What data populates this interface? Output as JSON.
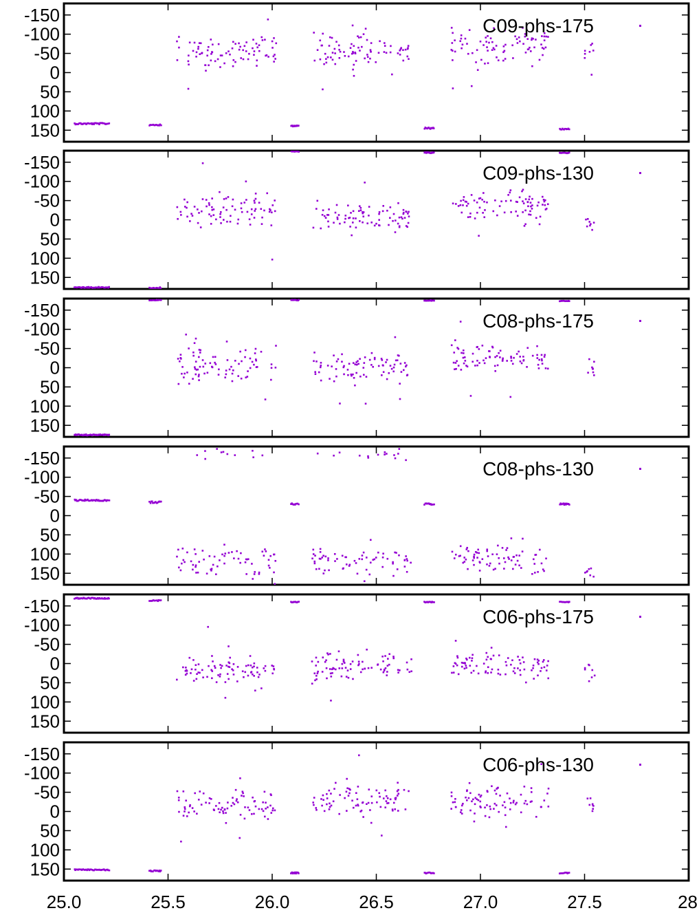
{
  "figure": {
    "x_tick_labels": [
      "25.0",
      "25.5",
      "26.0",
      "26.5",
      "27.0",
      "27.5",
      "28"
    ],
    "point_color": "#9400d3"
  },
  "chart_data": [
    {
      "type": "scatter",
      "legend": "C09-phs-175",
      "legend_position": "top-right",
      "xlim": [
        25.0,
        28.0
      ],
      "ylim": [
        180,
        -180
      ],
      "y_axis_inverted": true,
      "y_ticks": [
        -150,
        -100,
        -50,
        0,
        50,
        100,
        150
      ],
      "y_tick_labels": [
        "-150",
        "-100",
        "-50",
        "0",
        "50",
        "100",
        "150"
      ],
      "grid": false,
      "clusters": [
        {
          "x": [
            25.05,
            25.22
          ],
          "y_center": 133,
          "y_spread": 4,
          "n": 40,
          "kind": "band"
        },
        {
          "x": [
            25.41,
            25.47
          ],
          "y_center": 136,
          "y_spread": 4,
          "n": 14,
          "kind": "band"
        },
        {
          "x": [
            25.54,
            26.02
          ],
          "y_center": -55,
          "y_spread": 55,
          "n": 85,
          "kind": "scatter"
        },
        {
          "x": [
            26.09,
            26.13
          ],
          "y_center": 139,
          "y_spread": 3,
          "n": 10,
          "kind": "band"
        },
        {
          "x": [
            26.19,
            26.67
          ],
          "y_center": -55,
          "y_spread": 55,
          "n": 85,
          "kind": "scatter"
        },
        {
          "x": [
            26.73,
            26.78
          ],
          "y_center": 145,
          "y_spread": 4,
          "n": 12,
          "kind": "band"
        },
        {
          "x": [
            26.86,
            27.33
          ],
          "y_center": -70,
          "y_spread": 60,
          "n": 85,
          "kind": "scatter"
        },
        {
          "x": [
            27.38,
            27.43
          ],
          "y_center": 147,
          "y_spread": 3,
          "n": 12,
          "kind": "band"
        },
        {
          "x": [
            27.5,
            27.55
          ],
          "y_center": -55,
          "y_spread": 30,
          "n": 8,
          "kind": "scatter"
        }
      ]
    },
    {
      "type": "scatter",
      "legend": "C09-phs-130",
      "legend_position": "top-right",
      "xlim": [
        25.0,
        28.0
      ],
      "ylim": [
        180,
        -180
      ],
      "y_axis_inverted": true,
      "y_ticks": [
        -150,
        -100,
        -50,
        0,
        50,
        100,
        150
      ],
      "y_tick_labels": [
        "-150",
        "-100",
        "-50",
        "0",
        "50",
        "100",
        "150"
      ],
      "grid": false,
      "clusters": [
        {
          "x": [
            25.05,
            25.22
          ],
          "y_center": 176,
          "y_spread": 3,
          "n": 40,
          "kind": "band"
        },
        {
          "x": [
            25.41,
            25.47
          ],
          "y_center": 177,
          "y_spread": 3,
          "n": 12,
          "kind": "band"
        },
        {
          "x": [
            25.54,
            26.02
          ],
          "y_center": -25,
          "y_spread": 65,
          "n": 85,
          "kind": "scatter"
        },
        {
          "x": [
            26.09,
            26.13
          ],
          "y_center": -178,
          "y_spread": 2,
          "n": 10,
          "kind": "band"
        },
        {
          "x": [
            26.19,
            26.67
          ],
          "y_center": -10,
          "y_spread": 55,
          "n": 85,
          "kind": "scatter"
        },
        {
          "x": [
            26.73,
            26.78
          ],
          "y_center": -175,
          "y_spread": 3,
          "n": 12,
          "kind": "band"
        },
        {
          "x": [
            26.86,
            27.33
          ],
          "y_center": -40,
          "y_spread": 45,
          "n": 85,
          "kind": "scatter"
        },
        {
          "x": [
            27.38,
            27.43
          ],
          "y_center": -174,
          "y_spread": 2,
          "n": 12,
          "kind": "band"
        },
        {
          "x": [
            27.5,
            27.55
          ],
          "y_center": 5,
          "y_spread": 25,
          "n": 8,
          "kind": "scatter"
        }
      ]
    },
    {
      "type": "scatter",
      "legend": "C08-phs-175",
      "legend_position": "top-right",
      "xlim": [
        25.0,
        28.0
      ],
      "ylim": [
        180,
        -180
      ],
      "y_axis_inverted": true,
      "y_ticks": [
        -150,
        -100,
        -50,
        0,
        50,
        100,
        150
      ],
      "y_tick_labels": [
        "-150",
        "-100",
        "-50",
        "0",
        "50",
        "100",
        "150"
      ],
      "grid": false,
      "clusters": [
        {
          "x": [
            25.05,
            25.22
          ],
          "y_center": 175,
          "y_spread": 3,
          "n": 40,
          "kind": "band"
        },
        {
          "x": [
            25.41,
            25.47
          ],
          "y_center": -176,
          "y_spread": 3,
          "n": 12,
          "kind": "band"
        },
        {
          "x": [
            25.54,
            26.02
          ],
          "y_center": -5,
          "y_spread": 60,
          "n": 85,
          "kind": "scatter"
        },
        {
          "x": [
            26.09,
            26.13
          ],
          "y_center": -176,
          "y_spread": 2,
          "n": 10,
          "kind": "band"
        },
        {
          "x": [
            26.19,
            26.67
          ],
          "y_center": 0,
          "y_spread": 55,
          "n": 85,
          "kind": "scatter"
        },
        {
          "x": [
            26.73,
            26.78
          ],
          "y_center": -175,
          "y_spread": 2,
          "n": 12,
          "kind": "band"
        },
        {
          "x": [
            26.86,
            27.33
          ],
          "y_center": -25,
          "y_spread": 50,
          "n": 85,
          "kind": "scatter"
        },
        {
          "x": [
            27.38,
            27.43
          ],
          "y_center": -174,
          "y_spread": 2,
          "n": 12,
          "kind": "band"
        },
        {
          "x": [
            27.5,
            27.55
          ],
          "y_center": 10,
          "y_spread": 35,
          "n": 8,
          "kind": "scatter"
        }
      ]
    },
    {
      "type": "scatter",
      "legend": "C08-phs-130",
      "legend_position": "top-right",
      "xlim": [
        25.0,
        28.0
      ],
      "ylim": [
        180,
        -180
      ],
      "y_axis_inverted": true,
      "y_ticks": [
        -150,
        -100,
        -50,
        0,
        50,
        100,
        150
      ],
      "y_tick_labels": [
        "-150",
        "-100",
        "-50",
        "0",
        "50",
        "100",
        "150"
      ],
      "grid": false,
      "clusters": [
        {
          "x": [
            25.05,
            25.22
          ],
          "y_center": -40,
          "y_spread": 4,
          "n": 40,
          "kind": "band"
        },
        {
          "x": [
            25.41,
            25.47
          ],
          "y_center": -35,
          "y_spread": 5,
          "n": 14,
          "kind": "band"
        },
        {
          "x": [
            25.54,
            26.02
          ],
          "y_center": 120,
          "y_spread": 60,
          "n": 70,
          "kind": "scatter"
        },
        {
          "x": [
            25.54,
            26.02
          ],
          "y_center": -160,
          "y_spread": 20,
          "n": 12,
          "kind": "scatter"
        },
        {
          "x": [
            26.09,
            26.13
          ],
          "y_center": -30,
          "y_spread": 4,
          "n": 10,
          "kind": "band"
        },
        {
          "x": [
            26.19,
            26.67
          ],
          "y_center": 120,
          "y_spread": 60,
          "n": 70,
          "kind": "scatter"
        },
        {
          "x": [
            26.19,
            26.67
          ],
          "y_center": -160,
          "y_spread": 20,
          "n": 15,
          "kind": "scatter"
        },
        {
          "x": [
            26.73,
            26.78
          ],
          "y_center": -30,
          "y_spread": 4,
          "n": 12,
          "kind": "band"
        },
        {
          "x": [
            26.86,
            27.33
          ],
          "y_center": 120,
          "y_spread": 55,
          "n": 75,
          "kind": "scatter"
        },
        {
          "x": [
            27.38,
            27.43
          ],
          "y_center": -30,
          "y_spread": 4,
          "n": 12,
          "kind": "band"
        },
        {
          "x": [
            27.5,
            27.55
          ],
          "y_center": 150,
          "y_spread": 25,
          "n": 8,
          "kind": "scatter"
        }
      ]
    },
    {
      "type": "scatter",
      "legend": "C06-phs-175",
      "legend_position": "top-right",
      "xlim": [
        25.0,
        28.0
      ],
      "ylim": [
        180,
        -180
      ],
      "y_axis_inverted": true,
      "y_ticks": [
        -150,
        -100,
        -50,
        0,
        50,
        100,
        150
      ],
      "y_tick_labels": [
        "-150",
        "-100",
        "-50",
        "0",
        "50",
        "100",
        "150"
      ],
      "grid": false,
      "clusters": [
        {
          "x": [
            25.05,
            25.22
          ],
          "y_center": -170,
          "y_spread": 3,
          "n": 40,
          "kind": "band"
        },
        {
          "x": [
            25.41,
            25.47
          ],
          "y_center": -164,
          "y_spread": 3,
          "n": 12,
          "kind": "band"
        },
        {
          "x": [
            25.54,
            26.02
          ],
          "y_center": 15,
          "y_spread": 55,
          "n": 85,
          "kind": "scatter"
        },
        {
          "x": [
            26.09,
            26.13
          ],
          "y_center": -160,
          "y_spread": 2,
          "n": 10,
          "kind": "band"
        },
        {
          "x": [
            26.19,
            26.67
          ],
          "y_center": 5,
          "y_spread": 45,
          "n": 85,
          "kind": "scatter"
        },
        {
          "x": [
            26.73,
            26.78
          ],
          "y_center": -160,
          "y_spread": 2,
          "n": 12,
          "kind": "band"
        },
        {
          "x": [
            26.86,
            27.33
          ],
          "y_center": 5,
          "y_spread": 40,
          "n": 85,
          "kind": "scatter"
        },
        {
          "x": [
            27.38,
            27.43
          ],
          "y_center": -160,
          "y_spread": 2,
          "n": 12,
          "kind": "band"
        },
        {
          "x": [
            27.5,
            27.55
          ],
          "y_center": 15,
          "y_spread": 30,
          "n": 8,
          "kind": "scatter"
        }
      ]
    },
    {
      "type": "scatter",
      "legend": "C06-phs-130",
      "legend_position": "top-right",
      "xlim": [
        25.0,
        28.0
      ],
      "ylim": [
        180,
        -180
      ],
      "y_axis_inverted": true,
      "y_ticks": [
        -150,
        -100,
        -50,
        0,
        50,
        100,
        150
      ],
      "y_tick_labels": [
        "-150",
        "-100",
        "-50",
        "0",
        "50",
        "100",
        "150"
      ],
      "grid": false,
      "clusters": [
        {
          "x": [
            25.05,
            25.22
          ],
          "y_center": 152,
          "y_spread": 3,
          "n": 40,
          "kind": "band"
        },
        {
          "x": [
            25.41,
            25.47
          ],
          "y_center": 155,
          "y_spread": 4,
          "n": 14,
          "kind": "band"
        },
        {
          "x": [
            25.54,
            26.02
          ],
          "y_center": -15,
          "y_spread": 55,
          "n": 85,
          "kind": "scatter"
        },
        {
          "x": [
            26.09,
            26.13
          ],
          "y_center": 160,
          "y_spread": 3,
          "n": 10,
          "kind": "band"
        },
        {
          "x": [
            26.19,
            26.67
          ],
          "y_center": -30,
          "y_spread": 60,
          "n": 85,
          "kind": "scatter"
        },
        {
          "x": [
            26.73,
            26.78
          ],
          "y_center": 160,
          "y_spread": 3,
          "n": 12,
          "kind": "band"
        },
        {
          "x": [
            26.86,
            27.33
          ],
          "y_center": -25,
          "y_spread": 50,
          "n": 85,
          "kind": "scatter"
        },
        {
          "x": [
            27.38,
            27.43
          ],
          "y_center": 160,
          "y_spread": 3,
          "n": 12,
          "kind": "band"
        },
        {
          "x": [
            27.5,
            27.55
          ],
          "y_center": -20,
          "y_spread": 30,
          "n": 8,
          "kind": "scatter"
        }
      ]
    }
  ]
}
